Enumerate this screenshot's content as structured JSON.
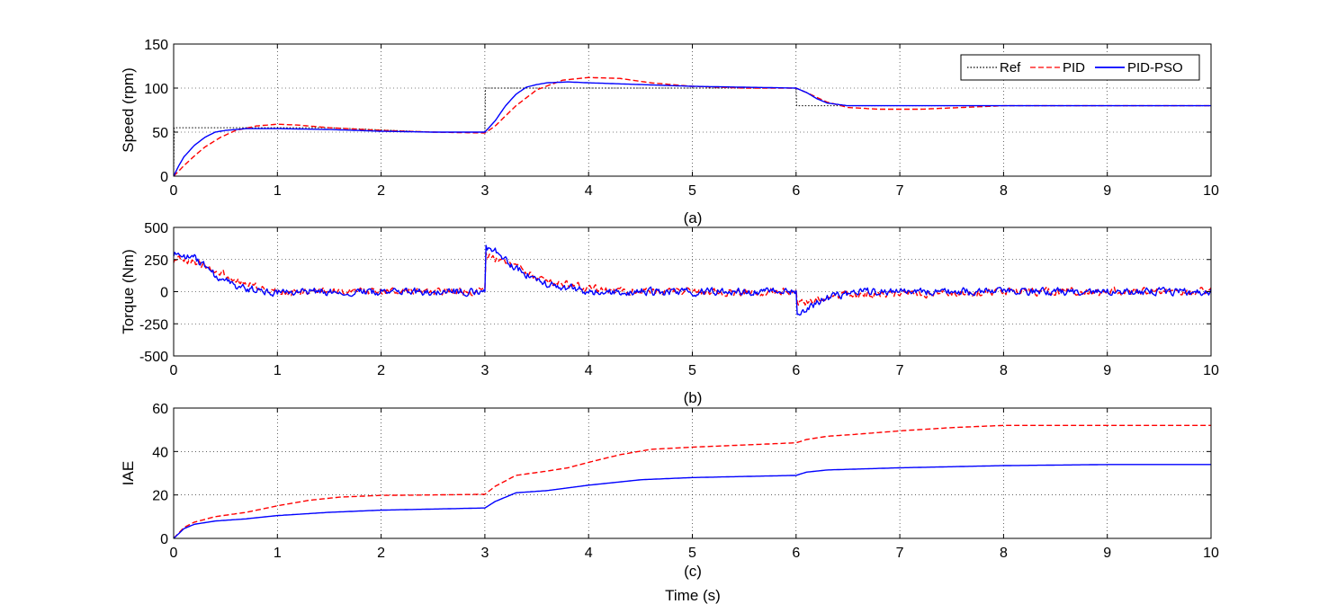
{
  "figure": {
    "x_axis_label": "Time (s)",
    "captions": [
      "(a)",
      "(b)",
      "(c)"
    ]
  },
  "legend": {
    "entries": [
      {
        "label": "Ref",
        "color": "#000000",
        "style": "dotted"
      },
      {
        "label": "PID",
        "color": "#ff0000",
        "style": "dashed"
      },
      {
        "label": "PID-PSO",
        "color": "#0000ff",
        "style": "solid"
      }
    ],
    "placement": "top-right of panel (a)"
  },
  "chart_data": [
    {
      "type": "line",
      "panel": "a",
      "ylabel": "Speed (rpm)",
      "xlabel": "",
      "xlim": [
        0,
        10
      ],
      "ylim": [
        0,
        150
      ],
      "xticks": [
        0,
        1,
        2,
        3,
        4,
        5,
        6,
        7,
        8,
        9,
        10
      ],
      "yticks": [
        0,
        50,
        100,
        150
      ],
      "grid": true,
      "series": [
        {
          "name": "Ref",
          "color": "#000000",
          "style": "dotted",
          "x": [
            0,
            0.005,
            0.3,
            0.8,
            1.5,
            2.5,
            3.0,
            3.005,
            4,
            5,
            6.0,
            6.005,
            8,
            10
          ],
          "y": [
            0,
            55,
            55,
            55,
            55,
            50,
            50,
            100,
            100,
            100,
            100,
            80,
            80,
            80
          ]
        },
        {
          "name": "PID",
          "color": "#ff0000",
          "style": "dashed",
          "x": [
            0,
            0.1,
            0.2,
            0.3,
            0.45,
            0.6,
            0.8,
            1.0,
            1.2,
            1.5,
            2.0,
            2.5,
            3.0,
            3.1,
            3.3,
            3.5,
            3.75,
            4.0,
            4.3,
            4.6,
            5.0,
            5.5,
            6.0,
            6.1,
            6.3,
            6.5,
            6.8,
            7.2,
            7.6,
            8.0,
            9.0,
            10.0
          ],
          "y": [
            0,
            12,
            23,
            33,
            44,
            52,
            57,
            59,
            58,
            55,
            52,
            50,
            49,
            57,
            80,
            98,
            109,
            112,
            111,
            106,
            102,
            100,
            100,
            95,
            84,
            78,
            76,
            76,
            78,
            80,
            80,
            80
          ]
        },
        {
          "name": "PID-PSO",
          "color": "#0000ff",
          "style": "solid",
          "x": [
            0,
            0.05,
            0.1,
            0.2,
            0.3,
            0.4,
            0.5,
            0.7,
            1.0,
            1.5,
            2.0,
            2.5,
            3.0,
            3.1,
            3.2,
            3.3,
            3.4,
            3.5,
            3.6,
            3.8,
            4.0,
            4.5,
            5.0,
            5.5,
            6.0,
            6.1,
            6.2,
            6.3,
            6.5,
            7.0,
            8.0,
            10.0
          ],
          "y": [
            0,
            12,
            22,
            35,
            44,
            50,
            52,
            54,
            54,
            53,
            51,
            50,
            50,
            63,
            80,
            93,
            101,
            104,
            106,
            107,
            106,
            104,
            102,
            101,
            100,
            95,
            88,
            83,
            80,
            80,
            80,
            80
          ]
        }
      ]
    },
    {
      "type": "line",
      "panel": "b",
      "ylabel": "Torque (Nm)",
      "xlabel": "",
      "xlim": [
        0,
        10
      ],
      "ylim": [
        -500,
        500
      ],
      "xticks": [
        0,
        1,
        2,
        3,
        4,
        5,
        6,
        7,
        8,
        9,
        10
      ],
      "yticks": [
        -500,
        -250,
        0,
        250,
        500
      ],
      "grid": true,
      "series": [
        {
          "name": "PID",
          "color": "#ff0000",
          "style": "dashed",
          "x": [
            0,
            0.05,
            0.2,
            0.4,
            0.7,
            1.0,
            2.0,
            3.0,
            3.01,
            3.2,
            3.5,
            4.0,
            5.0,
            6.0,
            6.01,
            6.2,
            6.5,
            8.0,
            10.0
          ],
          "y": [
            250,
            260,
            230,
            170,
            60,
            0,
            0,
            0,
            280,
            230,
            110,
            20,
            0,
            0,
            -90,
            -60,
            -20,
            0,
            0
          ],
          "noise_amplitude": 45
        },
        {
          "name": "PID-PSO",
          "color": "#0000ff",
          "style": "solid",
          "x": [
            0,
            0.05,
            0.2,
            0.4,
            0.6,
            0.9,
            2.0,
            3.0,
            3.01,
            3.1,
            3.3,
            3.6,
            4.0,
            5.0,
            6.0,
            6.01,
            6.1,
            6.3,
            6.6,
            8.0,
            10.0
          ],
          "y": [
            300,
            290,
            260,
            130,
            40,
            0,
            0,
            0,
            340,
            310,
            180,
            60,
            0,
            0,
            0,
            -170,
            -130,
            -50,
            0,
            0,
            0
          ],
          "noise_amplitude": 45
        }
      ]
    },
    {
      "type": "line",
      "panel": "c",
      "ylabel": "IAE",
      "xlabel": "Time (s)",
      "xlim": [
        0,
        10
      ],
      "ylim": [
        0,
        60
      ],
      "xticks": [
        0,
        1,
        2,
        3,
        4,
        5,
        6,
        7,
        8,
        9,
        10
      ],
      "yticks": [
        0,
        20,
        40,
        60
      ],
      "grid": true,
      "series": [
        {
          "name": "PID",
          "color": "#ff0000",
          "style": "dashed",
          "x": [
            0,
            0.1,
            0.2,
            0.4,
            0.7,
            1.0,
            1.3,
            1.6,
            2.0,
            2.5,
            3.0,
            3.1,
            3.3,
            3.6,
            3.8,
            4.0,
            4.3,
            4.6,
            5.0,
            5.5,
            6.0,
            6.1,
            6.3,
            6.6,
            7.0,
            7.5,
            8.0,
            9.0,
            10.0
          ],
          "y": [
            0,
            5,
            7.5,
            10,
            12,
            15,
            17.5,
            19,
            19.8,
            20,
            20.3,
            24,
            29,
            31,
            32.5,
            35,
            38.5,
            41,
            42,
            43,
            44,
            45.5,
            47,
            48,
            49.5,
            51,
            52,
            52,
            52
          ]
        },
        {
          "name": "PID-PSO",
          "color": "#0000ff",
          "style": "solid",
          "x": [
            0,
            0.1,
            0.2,
            0.4,
            0.7,
            1.0,
            1.5,
            2.0,
            2.5,
            3.0,
            3.1,
            3.3,
            3.6,
            4.0,
            4.5,
            5.0,
            5.5,
            6.0,
            6.1,
            6.3,
            7.0,
            8.0,
            9.0,
            10.0
          ],
          "y": [
            0,
            4.5,
            6.5,
            8,
            9,
            10.5,
            12,
            13,
            13.5,
            14,
            17,
            21,
            22,
            24.5,
            27,
            28,
            28.5,
            29,
            30.5,
            31.5,
            32.5,
            33.5,
            34,
            34
          ]
        }
      ]
    }
  ]
}
